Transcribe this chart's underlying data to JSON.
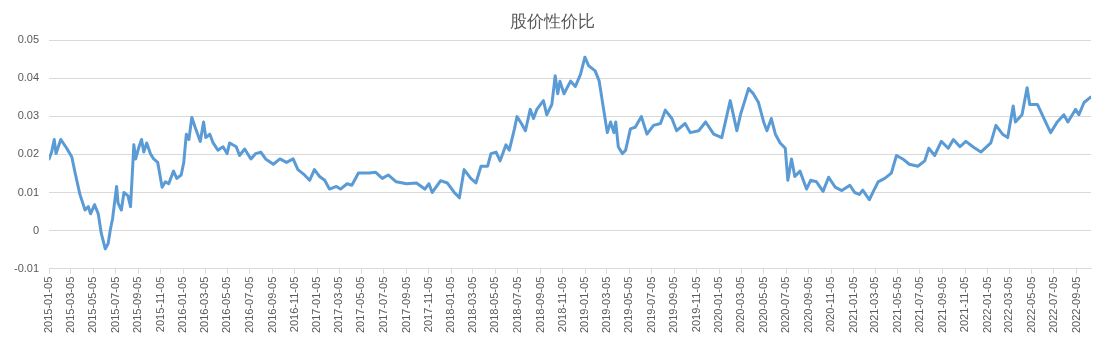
{
  "chart_data": {
    "type": "line",
    "title": "股价性价比",
    "x": [
      "2015-01-05",
      "2015-01-12",
      "2015-01-19",
      "2015-01-24",
      "2015-02-06",
      "2015-02-22",
      "2015-03-08",
      "2015-03-17",
      "2015-03-30",
      "2015-04-13",
      "2015-04-22",
      "2015-04-28",
      "2015-05-09",
      "2015-05-19",
      "2015-05-27",
      "2015-06-07",
      "2015-06-15",
      "2015-06-21",
      "2015-06-27",
      "2015-07-08",
      "2015-07-12",
      "2015-07-21",
      "2015-07-28",
      "2015-08-08",
      "2015-08-15",
      "2015-08-24",
      "2015-08-29",
      "2015-09-07",
      "2015-09-14",
      "2015-09-20",
      "2015-09-28",
      "2015-10-08",
      "2015-10-17",
      "2015-10-28",
      "2015-11-09",
      "2015-11-18",
      "2015-11-27",
      "2015-12-10",
      "2015-12-19",
      "2015-12-31",
      "2016-01-07",
      "2016-01-14",
      "2016-01-21",
      "2016-01-29",
      "2016-02-07",
      "2016-02-21",
      "2016-03-01",
      "2016-03-07",
      "2016-03-18",
      "2016-03-27",
      "2016-04-09",
      "2016-04-23",
      "2016-05-04",
      "2016-05-11",
      "2016-05-29",
      "2016-06-07",
      "2016-06-21",
      "2016-07-08",
      "2016-07-21",
      "2016-08-04",
      "2016-08-17",
      "2016-09-07",
      "2016-09-25",
      "2016-10-13",
      "2016-10-31",
      "2016-11-13",
      "2016-12-01",
      "2016-12-15",
      "2016-12-28",
      "2017-01-11",
      "2017-01-25",
      "2017-02-07",
      "2017-02-26",
      "2017-03-09",
      "2017-03-27",
      "2017-04-09",
      "2017-04-27",
      "2017-05-26",
      "2017-06-13",
      "2017-07-01",
      "2017-07-17",
      "2017-08-08",
      "2017-09-05",
      "2017-10-02",
      "2017-10-25",
      "2017-11-05",
      "2017-11-14",
      "2017-12-07",
      "2017-12-25",
      "2018-01-13",
      "2018-01-27",
      "2018-02-09",
      "2018-02-27",
      "2018-03-13",
      "2018-03-27",
      "2018-04-14",
      "2018-04-23",
      "2018-05-07",
      "2018-05-18",
      "2018-06-03",
      "2018-06-12",
      "2018-06-26",
      "2018-07-03",
      "2018-07-15",
      "2018-07-26",
      "2018-08-08",
      "2018-08-17",
      "2018-08-26",
      "2018-09-13",
      "2018-09-22",
      "2018-10-06",
      "2018-10-15",
      "2018-10-22",
      "2018-10-28",
      "2018-11-08",
      "2018-11-26",
      "2018-12-09",
      "2018-12-23",
      "2019-01-04",
      "2019-01-14",
      "2019-02-01",
      "2019-02-12",
      "2019-02-24",
      "2019-03-06",
      "2019-03-15",
      "2019-03-24",
      "2019-03-29",
      "2019-04-05",
      "2019-04-16",
      "2019-04-25",
      "2019-05-08",
      "2019-05-21",
      "2019-06-07",
      "2019-06-22",
      "2019-07-10",
      "2019-07-29",
      "2019-08-11",
      "2019-08-29",
      "2019-09-11",
      "2019-10-04",
      "2019-10-18",
      "2019-11-10",
      "2019-11-29",
      "2019-12-21",
      "2020-01-12",
      "2020-02-04",
      "2020-02-22",
      "2020-03-04",
      "2020-03-16",
      "2020-03-25",
      "2020-04-07",
      "2020-04-21",
      "2020-05-05",
      "2020-05-14",
      "2020-05-26",
      "2020-06-06",
      "2020-06-19",
      "2020-07-03",
      "2020-07-10",
      "2020-07-20",
      "2020-07-29",
      "2020-08-12",
      "2020-08-30",
      "2020-09-10",
      "2020-09-26",
      "2020-10-14",
      "2020-10-29",
      "2020-11-16",
      "2020-12-04",
      "2020-12-26",
      "2021-01-08",
      "2021-01-21",
      "2021-01-30",
      "2021-02-17",
      "2021-03-01",
      "2021-03-13",
      "2021-03-31",
      "2021-04-18",
      "2021-05-02",
      "2021-05-19",
      "2021-06-06",
      "2021-06-29",
      "2021-07-18",
      "2021-07-29",
      "2021-08-14",
      "2021-09-01",
      "2021-09-20",
      "2021-10-04",
      "2021-10-22",
      "2021-11-07",
      "2021-11-29",
      "2021-12-18",
      "2022-01-14",
      "2022-01-28",
      "2022-02-15",
      "2022-03-01",
      "2022-03-16",
      "2022-03-22",
      "2022-04-09",
      "2022-04-23",
      "2022-04-30",
      "2022-05-21",
      "2022-06-08",
      "2022-06-26",
      "2022-07-14",
      "2022-08-01",
      "2022-08-12",
      "2022-09-02",
      "2022-09-11",
      "2022-09-25",
      "2022-10-13"
    ],
    "series": [
      {
        "color": "#5b9bd5",
        "values": [
          0.0188,
          0.0206,
          0.0239,
          0.0202,
          0.0239,
          0.0216,
          0.0193,
          0.0151,
          0.0095,
          0.0054,
          0.0063,
          0.0044,
          0.0068,
          0.0044,
          -0.0006,
          -0.0048,
          -0.0034,
          0.0003,
          0.0031,
          0.0116,
          0.0072,
          0.0054,
          0.01,
          0.0091,
          0.0063,
          0.0225,
          0.0188,
          0.022,
          0.0239,
          0.0206,
          0.023,
          0.0202,
          0.0188,
          0.0179,
          0.0114,
          0.0128,
          0.0123,
          0.0156,
          0.0137,
          0.0146,
          0.0179,
          0.0253,
          0.0239,
          0.0297,
          0.0271,
          0.0234,
          0.0285,
          0.0244,
          0.0253,
          0.023,
          0.0211,
          0.022,
          0.0202,
          0.023,
          0.022,
          0.0197,
          0.0214,
          0.0188,
          0.0202,
          0.0206,
          0.0188,
          0.0174,
          0.0188,
          0.0179,
          0.0188,
          0.016,
          0.0146,
          0.0132,
          0.016,
          0.0142,
          0.0132,
          0.0109,
          0.0116,
          0.0109,
          0.0123,
          0.0119,
          0.0151,
          0.0151,
          0.0153,
          0.0137,
          0.0146,
          0.0128,
          0.0123,
          0.0125,
          0.0109,
          0.0123,
          0.01,
          0.0131,
          0.0125,
          0.01,
          0.0086,
          0.016,
          0.0137,
          0.0125,
          0.0169,
          0.0169,
          0.0202,
          0.0206,
          0.0183,
          0.0225,
          0.0211,
          0.0267,
          0.0299,
          0.0281,
          0.0262,
          0.0318,
          0.0294,
          0.0318,
          0.0341,
          0.0304,
          0.0331,
          0.0406,
          0.0359,
          0.0392,
          0.0359,
          0.0392,
          0.0378,
          0.041,
          0.0455,
          0.0433,
          0.0419,
          0.0392,
          0.0318,
          0.0257,
          0.0285,
          0.0257,
          0.0285,
          0.022,
          0.0202,
          0.0211,
          0.0267,
          0.0271,
          0.0299,
          0.0253,
          0.0276,
          0.0281,
          0.0316,
          0.0294,
          0.0262,
          0.0281,
          0.0257,
          0.0262,
          0.0285,
          0.0253,
          0.0244,
          0.0341,
          0.0262,
          0.0308,
          0.0345,
          0.0373,
          0.0359,
          0.0336,
          0.0285,
          0.0262,
          0.0294,
          0.0253,
          0.023,
          0.0216,
          0.0132,
          0.0188,
          0.0142,
          0.0156,
          0.0109,
          0.0132,
          0.0128,
          0.0103,
          0.014,
          0.0114,
          0.0105,
          0.0119,
          0.01,
          0.0095,
          0.0106,
          0.0081,
          0.0105,
          0.0128,
          0.0137,
          0.0151,
          0.0197,
          0.0188,
          0.0174,
          0.0169,
          0.0183,
          0.0216,
          0.0197,
          0.0234,
          0.0216,
          0.0239,
          0.022,
          0.0234,
          0.0218,
          0.0206,
          0.023,
          0.0276,
          0.0253,
          0.0244,
          0.0327,
          0.0285,
          0.0304,
          0.0375,
          0.0331,
          0.0331,
          0.0294,
          0.0257,
          0.0285,
          0.0304,
          0.0285,
          0.0318,
          0.0304,
          0.0336,
          0.035
        ]
      }
    ],
    "xlim": [
      "2015-01-05",
      "2022-10-14"
    ],
    "xticks": [
      "2015-01-05",
      "2015-03-05",
      "2015-05-05",
      "2015-07-05",
      "2015-09-05",
      "2015-11-05",
      "2016-01-05",
      "2016-03-05",
      "2016-05-05",
      "2016-07-05",
      "2016-09-05",
      "2016-11-05",
      "2017-01-05",
      "2017-03-05",
      "2017-05-05",
      "2017-07-05",
      "2017-09-05",
      "2017-11-05",
      "2018-01-05",
      "2018-03-05",
      "2018-05-05",
      "2018-07-05",
      "2018-09-05",
      "2018-11-05",
      "2019-01-05",
      "2019-03-05",
      "2019-05-05",
      "2019-07-05",
      "2019-09-05",
      "2019-11-05",
      "2020-01-05",
      "2020-03-05",
      "2020-05-05",
      "2020-07-05",
      "2020-09-05",
      "2020-11-05",
      "2021-01-05",
      "2021-03-05",
      "2021-05-05",
      "2021-07-05",
      "2021-09-05",
      "2021-11-05",
      "2022-01-05",
      "2022-03-05",
      "2022-05-05",
      "2022-07-05",
      "2022-09-05"
    ],
    "ylim": [
      -0.01,
      0.05
    ],
    "yticks": [
      -0.01,
      0,
      0.01,
      0.02,
      0.03,
      0.04,
      0.05
    ],
    "grid": "y",
    "legend": false,
    "marker": "none",
    "line_style": "solid"
  }
}
